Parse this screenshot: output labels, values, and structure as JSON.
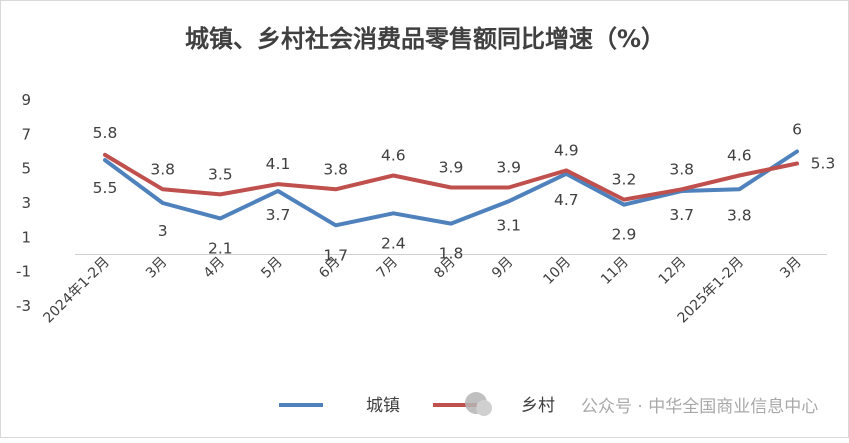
{
  "chart_data": {
    "type": "line",
    "title": "城镇、乡村社会消费品零售额同比增速（%）",
    "categories": [
      "2024年1-2月",
      "3月",
      "4月",
      "5月",
      "6月",
      "7月",
      "8月",
      "9月",
      "10月",
      "11月",
      "12月",
      "2025年1-2月",
      "3月"
    ],
    "series": [
      {
        "name": "城镇",
        "color": "#4f81bd",
        "values": [
          5.5,
          3,
          2.1,
          3.7,
          1.7,
          2.4,
          1.8,
          3.1,
          4.7,
          2.9,
          3.7,
          3.8,
          6
        ],
        "labels": [
          "5.5",
          "3",
          "2.1",
          "3.7",
          "1.7",
          "2.4",
          "1.8",
          "3.1",
          "4.7",
          "2.9",
          "3.7",
          "3.8",
          "6"
        ]
      },
      {
        "name": "乡村",
        "color": "#c0504d",
        "values": [
          5.8,
          3.8,
          3.5,
          4.1,
          3.8,
          4.6,
          3.9,
          3.9,
          4.9,
          3.2,
          3.8,
          4.6,
          5.3
        ],
        "labels": [
          "5.8",
          "3.8",
          "3.5",
          "4.1",
          "3.8",
          "4.6",
          "3.9",
          "3.9",
          "4.9",
          "3.2",
          "3.8",
          "4.6",
          "5.3"
        ]
      }
    ],
    "yticks": [
      "9",
      "7",
      "5",
      "3",
      "1",
      "-1",
      "-3"
    ],
    "ylim": [
      -3,
      9
    ],
    "grid": false,
    "legend": "bottom"
  },
  "watermark": {
    "text": "公众号 · 中华全国商业信息中心"
  }
}
